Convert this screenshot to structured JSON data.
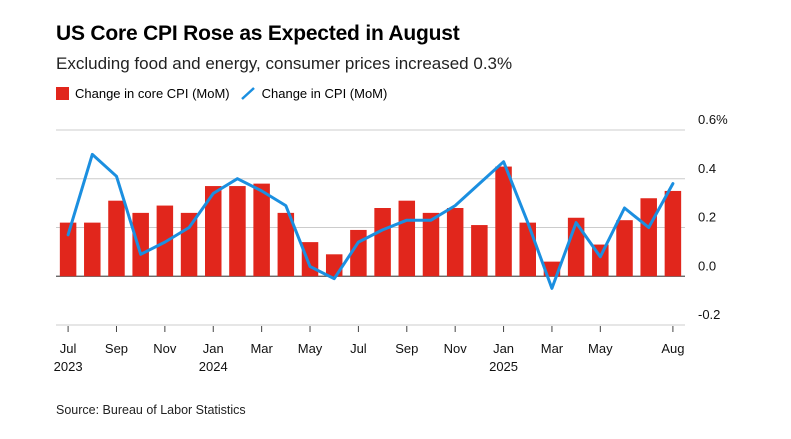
{
  "title": "US Core CPI Rose as Expected in August",
  "subtitle": "Excluding food and energy, consumer prices increased 0.3%",
  "source": "Source: Bureau of Labor Statistics",
  "colors": {
    "bar": "#e1261c",
    "line": "#1b8fe0",
    "grid": "#cccccc",
    "zero": "#555555"
  },
  "chart_data": {
    "type": "bar",
    "months": [
      "Jul 2023",
      "Aug 2023",
      "Sep 2023",
      "Oct 2023",
      "Nov 2023",
      "Dec 2023",
      "Jan 2024",
      "Feb 2024",
      "Mar 2024",
      "Apr 2024",
      "May 2024",
      "Jun 2024",
      "Jul 2024",
      "Aug 2024",
      "Sep 2024",
      "Oct 2024",
      "Nov 2024",
      "Dec 2024",
      "Jan 2025",
      "Feb 2025",
      "Mar 2025",
      "Apr 2025",
      "May 2025",
      "Jun 2025",
      "Jul 2025",
      "Aug 2025"
    ],
    "series": [
      {
        "name": "Change in core CPI (MoM)",
        "type": "bar",
        "values": [
          0.22,
          0.22,
          0.31,
          0.26,
          0.29,
          0.26,
          0.37,
          0.37,
          0.38,
          0.26,
          0.14,
          0.09,
          0.19,
          0.28,
          0.31,
          0.26,
          0.28,
          0.21,
          0.45,
          0.22,
          0.06,
          0.24,
          0.13,
          0.23,
          0.32,
          0.35
        ]
      },
      {
        "name": "Change in CPI (MoM)",
        "type": "line",
        "values": [
          0.17,
          0.5,
          0.41,
          0.09,
          0.14,
          0.2,
          0.34,
          0.4,
          0.35,
          0.29,
          0.04,
          -0.01,
          0.14,
          0.19,
          0.23,
          0.23,
          0.29,
          0.38,
          0.47,
          0.22,
          -0.05,
          0.22,
          0.08,
          0.28,
          0.2,
          0.38
        ]
      }
    ],
    "x_ticks": [
      {
        "index": 0,
        "label": "Jul",
        "year": "2023"
      },
      {
        "index": 2,
        "label": "Sep",
        "year": ""
      },
      {
        "index": 4,
        "label": "Nov",
        "year": ""
      },
      {
        "index": 6,
        "label": "Jan",
        "year": "2024"
      },
      {
        "index": 8,
        "label": "Mar",
        "year": ""
      },
      {
        "index": 10,
        "label": "May",
        "year": ""
      },
      {
        "index": 12,
        "label": "Jul",
        "year": ""
      },
      {
        "index": 14,
        "label": "Sep",
        "year": ""
      },
      {
        "index": 16,
        "label": "Nov",
        "year": ""
      },
      {
        "index": 18,
        "label": "Jan",
        "year": "2025"
      },
      {
        "index": 20,
        "label": "Mar",
        "year": ""
      },
      {
        "index": 22,
        "label": "May",
        "year": ""
      },
      {
        "index": 25,
        "label": "Aug",
        "year": ""
      }
    ],
    "y_ticks": [
      {
        "value": 0.6,
        "label": "0.6%"
      },
      {
        "value": 0.4,
        "label": "0.4"
      },
      {
        "value": 0.2,
        "label": "0.2"
      },
      {
        "value": 0.0,
        "label": "0.0"
      },
      {
        "value": -0.2,
        "label": "-0.2"
      }
    ],
    "ylim": [
      -0.2,
      0.6
    ],
    "grid": true,
    "legend_position": "top-left"
  }
}
